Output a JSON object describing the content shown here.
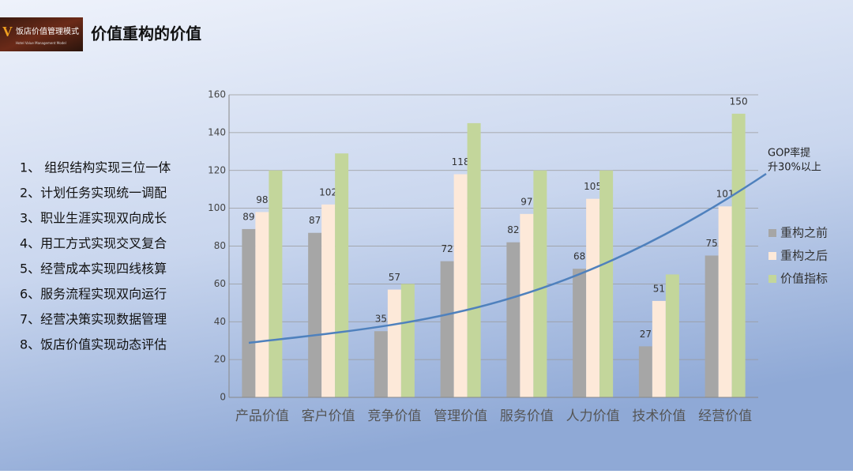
{
  "header": {
    "logo_title": "饭店价值管理模式",
    "logo_subtitle": "Hotel Value Management Model",
    "title": "价值重构的价值"
  },
  "list": [
    "1、 组织结构实现三位一体",
    "2、计划任务实现统一调配",
    "3、职业生涯实现双向成长",
    "4、用工方式实现交叉复合",
    "5、经营成本实现四线核算",
    "6、服务流程实现双向运行",
    "7、经营决策实现数据管理",
    "8、饭店价值实现动态评估"
  ],
  "chart_data": {
    "type": "bar",
    "categories": [
      "产品价值",
      "客户价值",
      "竞争价值",
      "管理价值",
      "服务价值",
      "人力价值",
      "技术价值",
      "经营价值"
    ],
    "series": [
      {
        "name": "重构之前",
        "color": "#a6a6a6",
        "values": [
          89,
          87,
          35,
          72,
          82,
          68,
          27,
          75
        ]
      },
      {
        "name": "重构之后",
        "color": "#fde9d9",
        "values": [
          98,
          102,
          57,
          118,
          97,
          105,
          51,
          101
        ]
      },
      {
        "name": "价值指标",
        "color": "#c3d69b",
        "values": [
          120,
          129,
          60,
          145,
          120,
          120,
          65,
          150
        ],
        "value_labels": [
          null,
          null,
          null,
          null,
          null,
          null,
          null,
          "150"
        ]
      }
    ],
    "ylim": [
      0,
      160
    ],
    "yticks": [
      0,
      20,
      40,
      60,
      80,
      100,
      120,
      140,
      160
    ],
    "grid": true,
    "legend": "right",
    "annotation": [
      "GOP率提",
      "升30%以上"
    ]
  }
}
